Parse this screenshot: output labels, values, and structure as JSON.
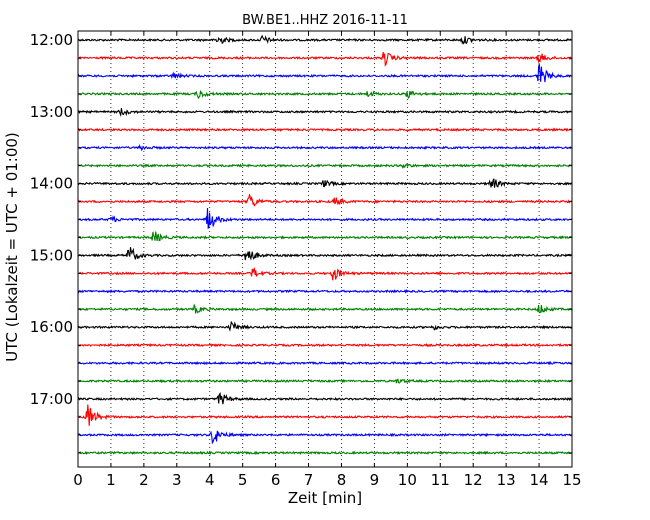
{
  "chart_data": {
    "type": "line",
    "title": "BW.BE1..HHZ 2016-11-11",
    "xlabel": "Zeit  [min]",
    "ylabel": "UTC (Lokalzeit = UTC + 01:00)",
    "xlim": [
      0,
      15
    ],
    "x_ticks": [
      "0",
      "1",
      "2",
      "3",
      "4",
      "5",
      "6",
      "7",
      "8",
      "9",
      "10",
      "11",
      "12",
      "13",
      "14",
      "15"
    ],
    "y_tick_labels": [
      "12:00",
      "13:00",
      "14:00",
      "15:00",
      "16:00",
      "17:00"
    ],
    "grid": "vertical dotted",
    "trace_colors": [
      "#000000",
      "#ff0000",
      "#0000ff",
      "#008000"
    ],
    "traces": [
      {
        "start": "12:00",
        "events": [
          {
            "t": 4.25,
            "a": 0.4
          },
          {
            "t": 5.6,
            "a": 0.3
          },
          {
            "t": 11.7,
            "a": 0.3
          }
        ]
      },
      {
        "start": "12:15",
        "events": [
          {
            "t": 9.3,
            "a": 0.6
          },
          {
            "t": 14.0,
            "a": 0.4
          }
        ]
      },
      {
        "start": "12:30",
        "events": [
          {
            "t": 2.9,
            "a": 0.2
          },
          {
            "t": 14.0,
            "a": 1.0
          }
        ]
      },
      {
        "start": "12:45",
        "events": [
          {
            "t": 3.65,
            "a": 0.35
          },
          {
            "t": 10.0,
            "a": 0.3
          },
          {
            "t": 8.8,
            "a": 0.2
          }
        ]
      },
      {
        "start": "13:00",
        "events": [
          {
            "t": 1.3,
            "a": 0.3
          }
        ]
      },
      {
        "start": "13:15",
        "events": []
      },
      {
        "start": "13:30",
        "events": [
          {
            "t": 1.9,
            "a": 0.15
          }
        ]
      },
      {
        "start": "13:45",
        "events": [
          {
            "t": 9.9,
            "a": 0.15
          }
        ]
      },
      {
        "start": "14:00",
        "events": [
          {
            "t": 7.45,
            "a": 0.25
          },
          {
            "t": 12.55,
            "a": 0.5
          }
        ]
      },
      {
        "start": "14:15",
        "events": [
          {
            "t": 5.2,
            "a": 0.6
          },
          {
            "t": 7.8,
            "a": 0.3
          }
        ]
      },
      {
        "start": "14:30",
        "events": [
          {
            "t": 1.0,
            "a": 0.2
          },
          {
            "t": 3.95,
            "a": 1.0
          }
        ]
      },
      {
        "start": "14:45",
        "events": [
          {
            "t": 2.3,
            "a": 0.5
          }
        ]
      },
      {
        "start": "15:00",
        "events": [
          {
            "t": 1.55,
            "a": 0.75
          },
          {
            "t": 5.1,
            "a": 0.8
          }
        ]
      },
      {
        "start": "15:15",
        "events": [
          {
            "t": 5.3,
            "a": 0.4
          },
          {
            "t": 7.75,
            "a": 0.55
          }
        ]
      },
      {
        "start": "15:30",
        "events": []
      },
      {
        "start": "15:45",
        "events": [
          {
            "t": 3.55,
            "a": 0.3
          },
          {
            "t": 14.0,
            "a": 0.4
          }
        ]
      },
      {
        "start": "16:00",
        "events": [
          {
            "t": 4.65,
            "a": 0.4
          },
          {
            "t": 10.8,
            "a": 0.15
          }
        ]
      },
      {
        "start": "16:15",
        "events": []
      },
      {
        "start": "16:30",
        "events": []
      },
      {
        "start": "16:45",
        "events": [
          {
            "t": 9.7,
            "a": 0.15
          }
        ]
      },
      {
        "start": "17:00",
        "events": [
          {
            "t": 4.3,
            "a": 0.55
          }
        ]
      },
      {
        "start": "17:15",
        "events": [
          {
            "t": 0.3,
            "a": 1.0
          }
        ]
      },
      {
        "start": "17:30",
        "events": [
          {
            "t": 4.1,
            "a": 0.75
          }
        ]
      },
      {
        "start": "17:45",
        "events": []
      }
    ]
  }
}
